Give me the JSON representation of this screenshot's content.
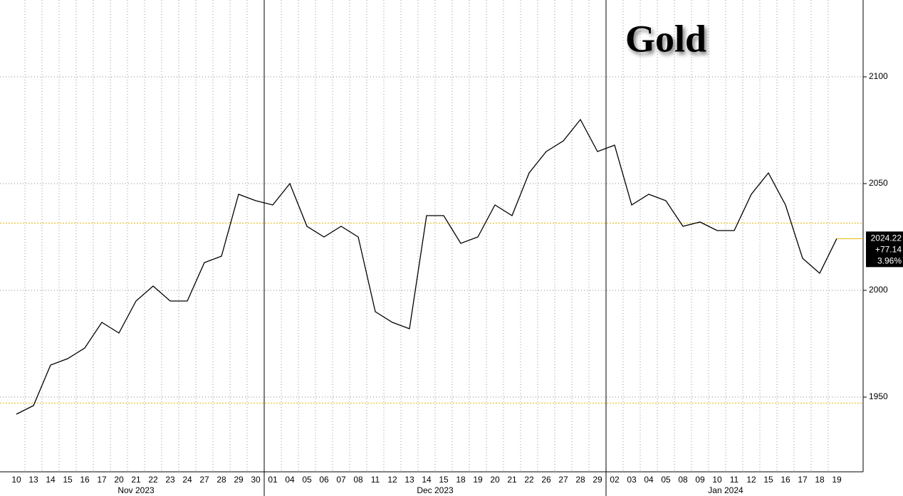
{
  "chart_data": {
    "type": "line",
    "title": "Gold",
    "categories": [
      "10",
      "13",
      "14",
      "15",
      "16",
      "17",
      "20",
      "21",
      "22",
      "23",
      "24",
      "27",
      "28",
      "29",
      "30",
      "01",
      "04",
      "05",
      "06",
      "07",
      "08",
      "11",
      "12",
      "13",
      "14",
      "15",
      "18",
      "19",
      "20",
      "21",
      "22",
      "26",
      "27",
      "28",
      "29",
      "02",
      "03",
      "04",
      "05",
      "08",
      "09",
      "10",
      "11",
      "12",
      "15",
      "16",
      "17",
      "18",
      "19"
    ],
    "months": [
      "Nov 2023",
      "Dec 2023",
      "Jan 2024"
    ],
    "series": [
      {
        "name": "Gold",
        "color": "#000000",
        "values": [
          1942,
          1946,
          1965,
          1968,
          1973,
          1985,
          1980,
          1995,
          2002,
          1995,
          1995,
          2013,
          2016,
          2045,
          2042,
          2040,
          2050,
          2030,
          2025,
          2030,
          2025,
          1990,
          1985,
          1982,
          2035,
          2035,
          2022,
          2025,
          2040,
          2035,
          2055,
          2065,
          2070,
          2080,
          2065,
          2068,
          2040,
          2045,
          2042,
          2030,
          2032,
          2028,
          2028,
          2045,
          2055,
          2040,
          2015,
          2008,
          2024.22
        ]
      }
    ],
    "change_label": "+77.14",
    "change_pct_label": "3.96%",
    "reference_lines": [
      2031.5,
      1947.2
    ],
    "reference_color": "#e6b800",
    "ylim": [
      1915,
      2136
    ],
    "yticks": [
      1950,
      2000,
      2050,
      2100
    ],
    "grid": true
  }
}
